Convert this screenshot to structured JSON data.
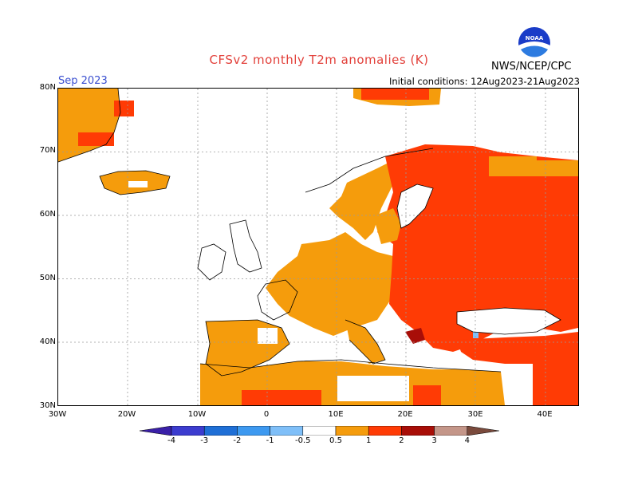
{
  "title": "CFSv2 monthly T2m anomalies (K)",
  "month": "Sep 2023",
  "initial_conditions": "Initial conditions: 12Aug2023-21Aug2023",
  "organization": "NWS/NCEP/CPC",
  "logo_text": "NOAA",
  "lat_labels": [
    "80N",
    "70N",
    "60N",
    "50N",
    "40N",
    "30N"
  ],
  "lon_labels": [
    "30W",
    "20W",
    "10W",
    "0",
    "10E",
    "20E",
    "30E",
    "40E"
  ],
  "colorbar": {
    "labels": [
      "-4",
      "-3",
      "-2",
      "-1",
      "-0.5",
      "0.5",
      "1",
      "2",
      "3",
      "4"
    ],
    "colors": [
      "#3a20a8",
      "#3c3ccf",
      "#1f6fd6",
      "#3d99f0",
      "#7fbff8",
      "#ffffff",
      "#f59c0c",
      "#ff3b05",
      "#a80e08",
      "#c49689",
      "#7a4a3c"
    ]
  },
  "colors": {
    "orange": "#f59c0c",
    "red": "#ff3b05",
    "darkred": "#a80e08",
    "lightblue": "#7fbff8",
    "title": "#e2403a"
  }
}
